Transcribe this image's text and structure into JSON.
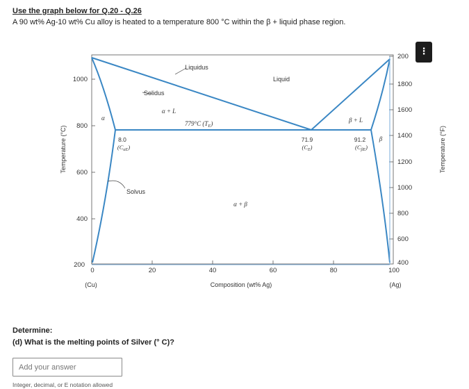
{
  "header": {
    "heading": "Use the graph below for Q.20 - Q.26",
    "intro": "A 90 wt% Ag-10 wt% Cu alloy is heated to a temperature 800 °C within the β + liquid phase region."
  },
  "more_button": {
    "label": "⋮",
    "icon": "more-vertical-icon",
    "color": "#1c1c1c"
  },
  "diagram": {
    "line_color": "#3a87c4",
    "left_axis": {
      "title": "Temperature (°C)",
      "ticks": [
        "1000",
        "800",
        "600",
        "400",
        "200"
      ],
      "values": [
        1000,
        800,
        600,
        400,
        200
      ]
    },
    "right_axis": {
      "title": "Temperature (°F)",
      "ticks": [
        "200",
        "1800",
        "1600",
        "1400",
        "1200",
        "1000",
        "800",
        "600",
        "400"
      ]
    },
    "x_axis": {
      "title": "Composition (wt% Ag)",
      "ticks": [
        "0",
        "20",
        "40",
        "60",
        "80",
        "100"
      ],
      "left_end": "(Cu)",
      "right_end": "(Ag)"
    },
    "labels": {
      "liquidus": "Liquidus",
      "liquid": "Liquid",
      "solidus": "Solidus",
      "alpha": "α",
      "alpha_l": "α + L",
      "eutectic_temp": "779°C (T",
      "eutectic_temp_sub": "E",
      "eutectic_temp_close": ")",
      "beta_l": "β + L",
      "beta": "β",
      "alpha_beta": "α + β",
      "solvus": "Solvus",
      "c_alpha_val": "8.0",
      "c_alpha_lbl": "(C",
      "c_alpha_sub": "αE",
      "c_e_val": "71.9",
      "c_e_lbl": "(C",
      "c_e_sub": "E",
      "c_beta_val": "91.2",
      "c_beta_lbl": "(C",
      "c_beta_sub": "βE",
      "close_paren": ")"
    }
  },
  "question": {
    "determine": "Determine:",
    "text": "(d) What is the melting points of Silver (° C)?",
    "placeholder": "Add your answer",
    "value": "",
    "hint": "Integer, decimal, or E notation allowed"
  }
}
